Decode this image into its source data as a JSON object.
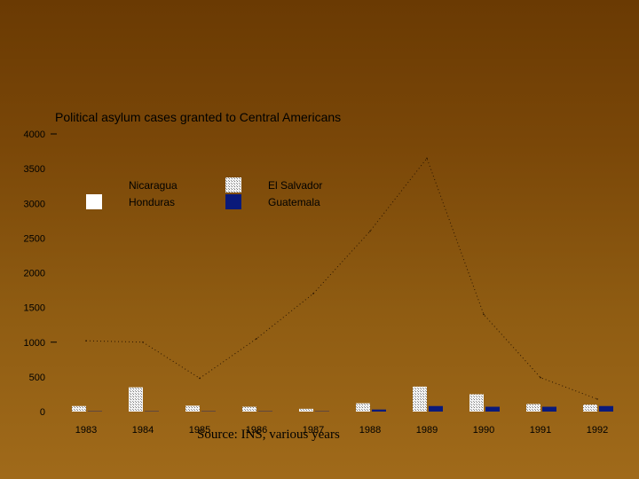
{
  "chart_data": {
    "type": "bar",
    "title": "Political asylum cases granted to Central Americans",
    "source": "Source: INS, various years",
    "categories": [
      "1983",
      "1984",
      "1985",
      "1986",
      "1987",
      "1988",
      "1989",
      "1990",
      "1991",
      "1992"
    ],
    "ylim": [
      0,
      4000
    ],
    "yticks": [
      "0",
      "500",
      "1000",
      "1500",
      "2000",
      "2500",
      "3000",
      "3500",
      "4000"
    ],
    "series": [
      {
        "name": "Nicaragua",
        "values": [
          1020,
          1000,
          480,
          1050,
          1700,
          2600,
          3650,
          1400,
          490,
          180
        ],
        "style": "dotted-line",
        "color": "#000000"
      },
      {
        "name": "El Salvador",
        "values": [
          80,
          350,
          85,
          70,
          40,
          120,
          360,
          250,
          110,
          100
        ],
        "style": "hatched-bar",
        "color": "#d8d8d8"
      },
      {
        "name": "Honduras",
        "values": [
          0,
          0,
          0,
          0,
          0,
          0,
          0,
          0,
          0,
          0
        ],
        "style": "white-bar",
        "color": "#ffffff"
      },
      {
        "name": "Guatemala",
        "values": [
          5,
          5,
          5,
          5,
          5,
          30,
          80,
          70,
          70,
          80
        ],
        "style": "solid-bar",
        "color": "#0a1a7a"
      }
    ],
    "legend_position": "top-left",
    "grid": false
  }
}
